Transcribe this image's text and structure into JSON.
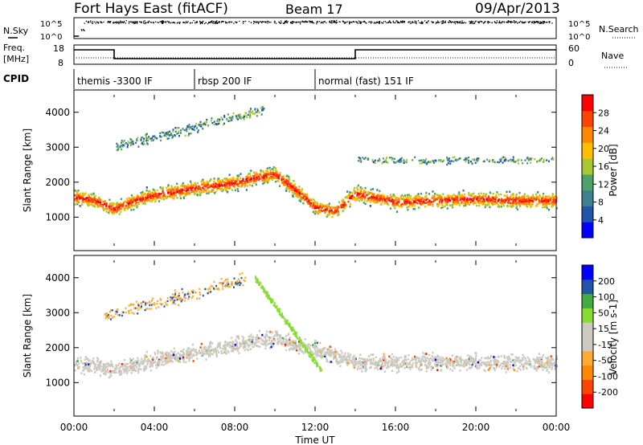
{
  "header": {
    "site": "Fort Hays East (fitACF)",
    "beam": "Beam 17",
    "date": "09/Apr/2013"
  },
  "summary": {
    "nsky_label": "N.Sky",
    "nsearch_label": "N.Search",
    "noise_ticks": [
      "10^5",
      "10^0"
    ],
    "freq_label": "Freq.",
    "freq_unit": "[MHz]",
    "freq_ticks": [
      "18",
      "8"
    ],
    "nave_label": "Nave",
    "nave_ticks": [
      "60",
      "0"
    ],
    "cpid_label": "CPID",
    "cpid_segments": [
      {
        "label": "themis -3300 IF",
        "start": 0.0,
        "end": 6.0
      },
      {
        "label": "rbsp 200 IF",
        "start": 6.0,
        "end": 12.0
      },
      {
        "label": "normal (fast) 151 IF",
        "start": 12.0,
        "end": 24.0
      }
    ],
    "freq_steps": [
      {
        "start": 0.0,
        "end": 2.0,
        "level": "high"
      },
      {
        "start": 2.0,
        "end": 14.0,
        "level": "low"
      },
      {
        "start": 14.0,
        "end": 24.0,
        "level": "high"
      }
    ]
  },
  "chart_data": [
    {
      "type": "heatmap",
      "parameter": "power",
      "ylabel": "Slant Range [km]",
      "xlim": [
        0,
        24
      ],
      "ylim": [
        180,
        4500
      ],
      "yticks": [
        1000,
        2000,
        3000,
        4000
      ],
      "colorbar": {
        "label": "Power [dB]",
        "ticks": [
          "28",
          "24",
          "20",
          "16",
          "12",
          "8",
          "4"
        ],
        "colors": [
          "#0000ff",
          "#2255aa",
          "#3f7f8f",
          "#4fa06a",
          "#a8c830",
          "#ffbf00",
          "#ff8800",
          "#ff4400",
          "#ff0000"
        ]
      },
      "features": [
        {
          "name": "main band",
          "times": [
            0,
            1,
            2,
            3,
            4,
            6,
            8,
            9,
            10,
            11,
            12,
            13,
            14,
            16,
            18,
            20,
            22,
            24
          ],
          "range_km": [
            1600,
            1500,
            1250,
            1500,
            1650,
            1850,
            2000,
            2150,
            2250,
            1800,
            1300,
            1200,
            1700,
            1450,
            1500,
            1550,
            1500,
            1500
          ]
        }
      ]
    },
    {
      "type": "heatmap",
      "parameter": "velocity",
      "ylabel": "Slant Range [km]",
      "xlabel": "Time UT",
      "xlim": [
        0,
        24
      ],
      "ylim": [
        180,
        4500
      ],
      "yticks": [
        1000,
        2000,
        3000,
        4000
      ],
      "xticks": [
        "00:00",
        "04:00",
        "08:00",
        "12:00",
        "16:00",
        "20:00",
        "00:00"
      ],
      "colorbar": {
        "label": "Velocity [m s-1]",
        "ticks": [
          "200",
          "100",
          "50",
          "15",
          "-15",
          "-50",
          "-100",
          "-200"
        ],
        "colors": [
          "#ff0000",
          "#ff4400",
          "#ff8800",
          "#ffaa33",
          "#cccac0",
          "#cccac0",
          "#88dd33",
          "#44aa44",
          "#2255aa",
          "#0000ff"
        ]
      },
      "features": [
        {
          "name": "ground scatter band",
          "times": [
            0,
            2,
            6,
            10,
            14,
            24
          ],
          "range_km": [
            1600,
            1400,
            1900,
            2300,
            1600,
            1600
          ]
        }
      ]
    }
  ]
}
